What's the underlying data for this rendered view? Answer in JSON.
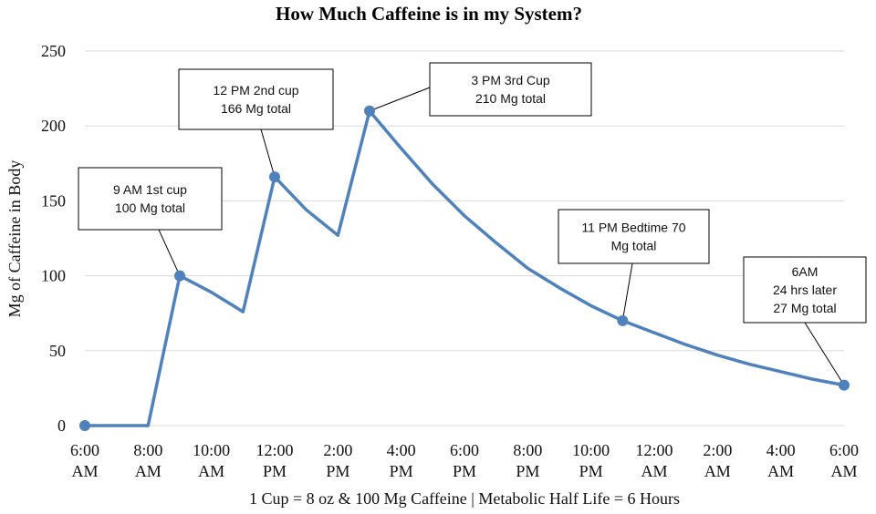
{
  "chart_data": {
    "type": "line",
    "title": "How Much Caffeine is in my System?",
    "xlabel": "1 Cup = 8 oz & 100 Mg Caffeine | Metabolic Half Life = 6 Hours",
    "ylabel": "Mg of Caffeine in Body",
    "ylim": [
      0,
      250
    ],
    "yticks": [
      0,
      50,
      100,
      150,
      200,
      250
    ],
    "xlim": [
      0,
      24
    ],
    "xticks": [
      {
        "x": 0,
        "line1": "6:00",
        "line2": "AM"
      },
      {
        "x": 2,
        "line1": "8:00",
        "line2": "AM"
      },
      {
        "x": 4,
        "line1": "10:00",
        "line2": "AM"
      },
      {
        "x": 6,
        "line1": "12:00",
        "line2": "PM"
      },
      {
        "x": 8,
        "line1": "2:00",
        "line2": "PM"
      },
      {
        "x": 10,
        "line1": "4:00",
        "line2": "PM"
      },
      {
        "x": 12,
        "line1": "6:00",
        "line2": "PM"
      },
      {
        "x": 14,
        "line1": "8:00",
        "line2": "PM"
      },
      {
        "x": 16,
        "line1": "10:00",
        "line2": "PM"
      },
      {
        "x": 18,
        "line1": "12:00",
        "line2": "AM"
      },
      {
        "x": 20,
        "line1": "2:00",
        "line2": "AM"
      },
      {
        "x": 22,
        "line1": "4:00",
        "line2": "AM"
      },
      {
        "x": 24,
        "line1": "6:00",
        "line2": "AM"
      }
    ],
    "grid": true,
    "series": [
      {
        "name": "Caffeine",
        "color": "#4f81bd",
        "x": [
          0,
          1,
          2,
          3,
          4,
          5,
          6,
          7,
          8,
          9,
          10,
          11,
          12,
          13,
          14,
          15,
          16,
          17,
          18,
          19,
          20,
          21,
          22,
          23,
          24
        ],
        "y": [
          0,
          0,
          0,
          100,
          89,
          76,
          166,
          144,
          127,
          210,
          185,
          161,
          140,
          122,
          105,
          92,
          80,
          70,
          62,
          54,
          47,
          41,
          36,
          31,
          27
        ]
      }
    ],
    "markers": [
      {
        "x": 0,
        "y": 0
      },
      {
        "x": 3,
        "y": 100
      },
      {
        "x": 6,
        "y": 166
      },
      {
        "x": 9,
        "y": 210
      },
      {
        "x": 17,
        "y": 70
      },
      {
        "x": 24,
        "y": 27
      }
    ],
    "annotations": [
      {
        "x": 3,
        "y": 100,
        "lines": [
          "9 AM 1st cup",
          "100 Mg total"
        ]
      },
      {
        "x": 6,
        "y": 166,
        "lines": [
          "12 PM 2nd cup",
          "166 Mg total"
        ]
      },
      {
        "x": 9,
        "y": 210,
        "lines": [
          "3 PM 3rd Cup",
          "210 Mg total"
        ]
      },
      {
        "x": 17,
        "y": 70,
        "lines": [
          "11 PM Bedtime 70",
          "Mg total"
        ]
      },
      {
        "x": 24,
        "y": 27,
        "lines": [
          "6AM",
          "24 hrs later",
          "27 Mg total"
        ]
      }
    ]
  }
}
